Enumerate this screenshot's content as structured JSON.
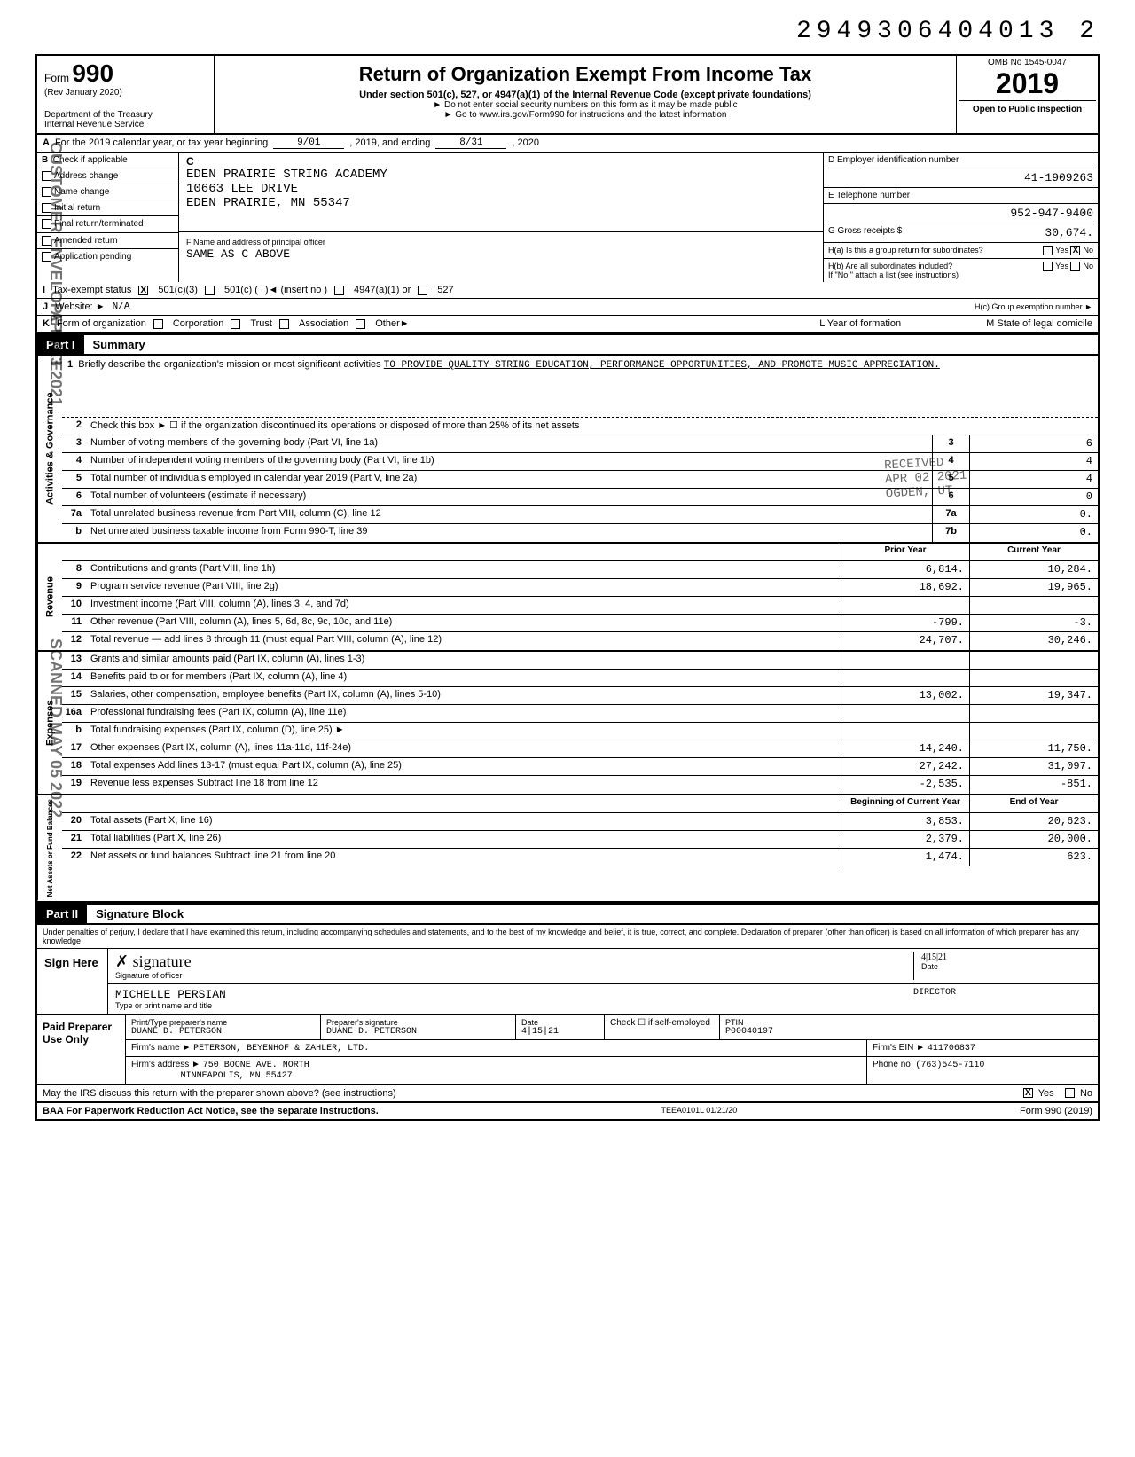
{
  "doc_number": "2949306404013  2",
  "header": {
    "form_label": "Form",
    "form_number": "990",
    "rev": "(Rev  January 2020)",
    "dept": "Department of the Treasury",
    "irs": "Internal Revenue Service",
    "title": "Return of Organization Exempt From Income Tax",
    "subtitle": "Under section 501(c), 527, or 4947(a)(1) of the Internal Revenue Code (except private foundations)",
    "note1": "► Do not enter social security numbers on this form as it may be made public",
    "note2": "► Go to www.irs.gov/Form990 for instructions and the latest information",
    "omb": "OMB No  1545-0047",
    "year": "2019",
    "open": "Open to Public Inspection"
  },
  "stamps": {
    "envelope": "CUSTOMER ENVELOPE DATE",
    "apr13": "APR 13 2021",
    "scanned": "SCANNED MAY 05 2022",
    "received": "RECEIVED",
    "received2": "APR 02 2021",
    "ogden": "OGDEN, UT"
  },
  "row_a": {
    "label": "A",
    "text1": "For the 2019 calendar year, or tax year beginning",
    "begin": "9/01",
    "text2": ", 2019, and ending",
    "end": "8/31",
    "text3": ", 2020"
  },
  "section_b": {
    "label": "B",
    "check_header": "Check if applicable",
    "checks": [
      "Address change",
      "Name change",
      "Initial return",
      "Final return/terminated",
      "Amended return",
      "Application pending"
    ],
    "c_label": "C",
    "org_name": "EDEN PRAIRIE STRING ACADEMY",
    "addr1": "10663 LEE DRIVE",
    "addr2": "EDEN PRAIRIE, MN 55347",
    "f_label": "F  Name and address of principal officer",
    "f_value": "SAME AS C ABOVE",
    "d_label": "D  Employer identification number",
    "d_value": "41-1909263",
    "e_label": "E  Telephone number",
    "e_value": "952-947-9400",
    "g_label": "G  Gross receipts $",
    "g_value": "30,674.",
    "ha_label": "H(a) Is this a group return for subordinates?",
    "hb_label": "H(b) Are all subordinates included?",
    "hb_note": "If \"No,\" attach a list (see instructions)",
    "hc_label": "H(c) Group exemption number ►",
    "yes": "Yes",
    "no": "No"
  },
  "row_i": {
    "label": "I",
    "text": "Tax-exempt status",
    "opts": [
      "501(c)(3)",
      "501(c) (",
      "4947(a)(1) or",
      "527"
    ],
    "insert": ")◄  (insert no )"
  },
  "row_j": {
    "label": "J",
    "text": "Website: ►",
    "value": "N/A"
  },
  "row_k": {
    "label": "K",
    "text": "Form of organization",
    "opts": [
      "Corporation",
      "Trust",
      "Association",
      "Other►"
    ],
    "l_label": "L Year of formation",
    "m_label": "M State of legal domicile"
  },
  "part1": {
    "label": "Part I",
    "title": "Summary",
    "sections": {
      "governance": "Activities & Governance",
      "revenue": "Revenue",
      "expenses": "Expenses",
      "netassets": "Net Assets or Fund Balances"
    },
    "mission_label": "1",
    "mission_text": "Briefly describe the organization's mission or most significant activities",
    "mission_value": "TO PROVIDE QUALITY STRING EDUCATION, PERFORMANCE OPPORTUNITIES, AND PROMOTE MUSIC APPRECIATION.",
    "line2": {
      "n": "2",
      "t": "Check this box ► ☐ if the organization discontinued its operations or disposed of more than 25% of its net assets"
    },
    "gov_lines": [
      {
        "n": "3",
        "t": "Number of voting members of the governing body (Part VI, line 1a)",
        "box": "3",
        "v": "6"
      },
      {
        "n": "4",
        "t": "Number of independent voting members of the governing body (Part VI, line 1b)",
        "box": "4",
        "v": "4"
      },
      {
        "n": "5",
        "t": "Total number of individuals employed in calendar year 2019 (Part V, line 2a)",
        "box": "5",
        "v": "4"
      },
      {
        "n": "6",
        "t": "Total number of volunteers (estimate if necessary)",
        "box": "6",
        "v": "0"
      },
      {
        "n": "7a",
        "t": "Total unrelated business revenue from Part VIII, column (C), line 12",
        "box": "7a",
        "v": "0."
      },
      {
        "n": "b",
        "t": "Net unrelated business taxable income from Form 990-T, line 39",
        "box": "7b",
        "v": "0."
      }
    ],
    "col_headers": {
      "prior": "Prior Year",
      "current": "Current Year"
    },
    "rev_lines": [
      {
        "n": "8",
        "t": "Contributions and grants (Part VIII, line 1h)",
        "p": "6,814.",
        "c": "10,284."
      },
      {
        "n": "9",
        "t": "Program service revenue (Part VIII, line 2g)",
        "p": "18,692.",
        "c": "19,965."
      },
      {
        "n": "10",
        "t": "Investment income (Part VIII, column (A), lines 3, 4, and 7d)",
        "p": "",
        "c": ""
      },
      {
        "n": "11",
        "t": "Other revenue (Part VIII, column (A), lines 5, 6d, 8c, 9c, 10c, and 11e)",
        "p": "-799.",
        "c": "-3."
      },
      {
        "n": "12",
        "t": "Total revenue — add lines 8 through 11 (must equal Part VIII, column (A), line 12)",
        "p": "24,707.",
        "c": "30,246."
      }
    ],
    "exp_lines": [
      {
        "n": "13",
        "t": "Grants and similar amounts paid (Part IX, column (A), lines 1-3)",
        "p": "",
        "c": ""
      },
      {
        "n": "14",
        "t": "Benefits paid to or for members (Part IX, column (A), line 4)",
        "p": "",
        "c": ""
      },
      {
        "n": "15",
        "t": "Salaries, other compensation, employee benefits (Part IX, column (A), lines 5-10)",
        "p": "13,002.",
        "c": "19,347."
      },
      {
        "n": "16a",
        "t": "Professional fundraising fees (Part IX, column (A), line 11e)",
        "p": "",
        "c": ""
      },
      {
        "n": "b",
        "t": "Total fundraising expenses (Part IX, column (D), line 25) ►",
        "p": "",
        "c": ""
      },
      {
        "n": "17",
        "t": "Other expenses (Part IX, column (A), lines 11a-11d, 11f-24e)",
        "p": "14,240.",
        "c": "11,750."
      },
      {
        "n": "18",
        "t": "Total expenses  Add lines 13-17 (must equal Part IX, column (A), line 25)",
        "p": "27,242.",
        "c": "31,097."
      },
      {
        "n": "19",
        "t": "Revenue less expenses  Subtract line 18 from line 12",
        "p": "-2,535.",
        "c": "-851."
      }
    ],
    "na_headers": {
      "begin": "Beginning of Current Year",
      "end": "End of Year"
    },
    "na_lines": [
      {
        "n": "20",
        "t": "Total assets (Part X, line 16)",
        "p": "3,853.",
        "c": "20,623."
      },
      {
        "n": "21",
        "t": "Total liabilities (Part X, line 26)",
        "p": "2,379.",
        "c": "20,000."
      },
      {
        "n": "22",
        "t": "Net assets or fund balances  Subtract line 21 from line 20",
        "p": "1,474.",
        "c": "623."
      }
    ]
  },
  "part2": {
    "label": "Part II",
    "title": "Signature Block",
    "statement": "Under penalties of perjury, I declare that I have examined this return, including accompanying schedules and statements, and to the best of my knowledge and belief, it is true, correct, and complete. Declaration of preparer (other than officer) is based on all information of which preparer has any knowledge",
    "sign_here": "Sign Here",
    "sig_officer": "Signature of officer",
    "date_lbl": "Date",
    "date_val": "4|15|21",
    "officer_name": "MICHELLE PERSIAN",
    "officer_title_lbl": "Type or print name and title",
    "officer_title": "DIRECTOR"
  },
  "preparer": {
    "label": "Paid Preparer Use Only",
    "print_name_lbl": "Print/Type preparer's name",
    "print_name": "DUANE D. PETERSON",
    "sig_lbl": "Preparer's signature",
    "sig": "DUANE D. PETERSON",
    "date_lbl": "Date",
    "date": "4|15|21",
    "check_lbl": "Check ☐ if self-employed",
    "ptin_lbl": "PTIN",
    "ptin": "P00040197",
    "firm_name_lbl": "Firm's name ►",
    "firm_name": "PETERSON, BEYENHOF & ZAHLER, LTD.",
    "firm_addr_lbl": "Firm's address ►",
    "firm_addr1": "750 BOONE AVE. NORTH",
    "firm_addr2": "MINNEAPOLIS, MN 55427",
    "ein_lbl": "Firm's EIN ►",
    "ein": "411706837",
    "phone_lbl": "Phone no",
    "phone": "(763)545-7110"
  },
  "footer": {
    "discuss": "May the IRS discuss this return with the preparer shown above? (see instructions)",
    "yes": "Yes",
    "no": "No",
    "baa": "BAA  For Paperwork Reduction Act Notice, see the separate instructions.",
    "teea": "TEEA0101L 01/21/20",
    "form": "Form 990 (2019)"
  }
}
